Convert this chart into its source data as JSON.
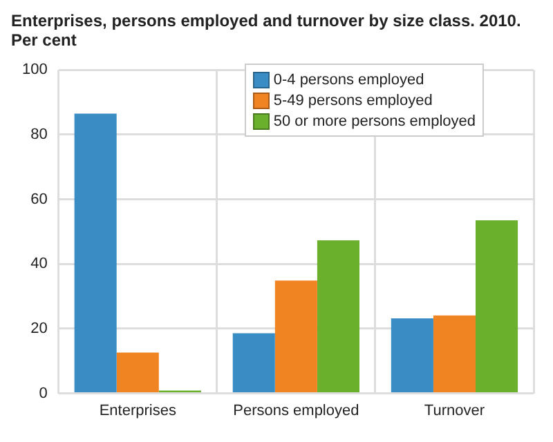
{
  "chart_data": {
    "type": "bar",
    "title": "Enterprises, persons employed and turnover by size class. 2010. Per cent",
    "categories": [
      "Enterprises",
      "Persons employed",
      "Turnover"
    ],
    "series": [
      {
        "name": "0-4 persons employed",
        "color": "#3a8dc4",
        "values": [
          86.5,
          18.6,
          23.2
        ]
      },
      {
        "name": "5-49 persons employed",
        "color": "#f08322",
        "values": [
          12.6,
          34.9,
          24.1
        ]
      },
      {
        "name": "50 or more persons employed",
        "color": "#6bb02c",
        "values": [
          0.9,
          47.3,
          53.5
        ]
      }
    ],
    "ylim": [
      0,
      100
    ],
    "yticks": [
      0,
      20,
      40,
      60,
      80,
      100
    ],
    "grid": true,
    "legend": "top right"
  }
}
